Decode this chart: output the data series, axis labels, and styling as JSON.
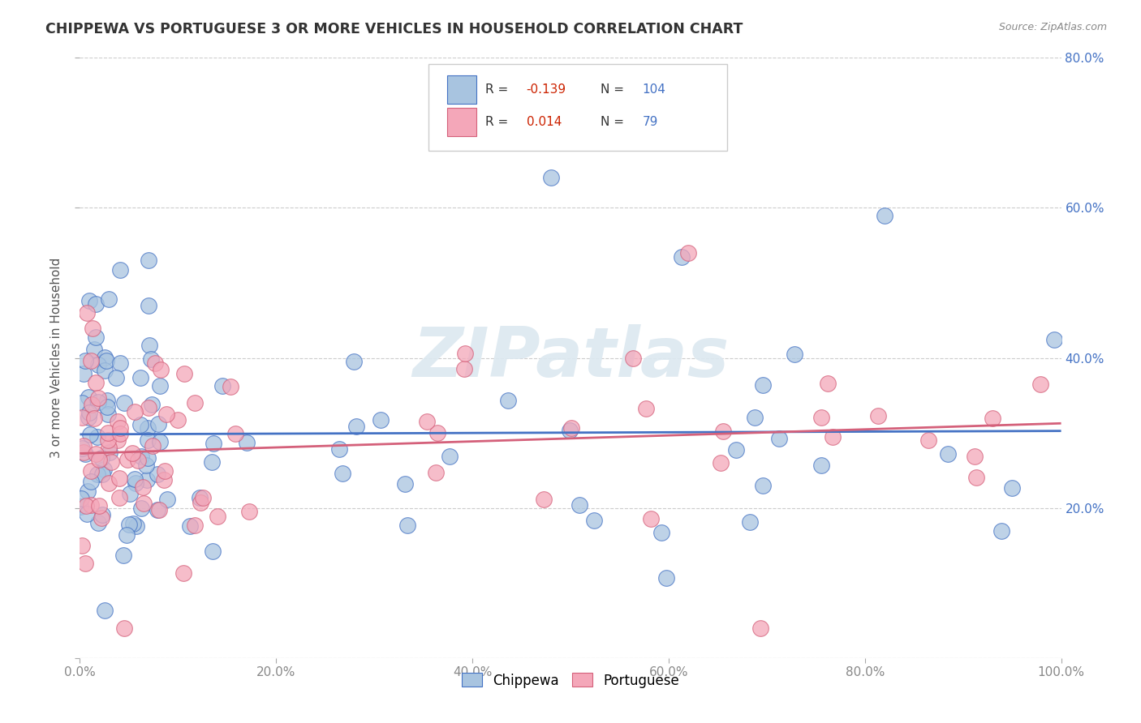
{
  "title": "CHIPPEWA VS PORTUGUESE 3 OR MORE VEHICLES IN HOUSEHOLD CORRELATION CHART",
  "source": "Source: ZipAtlas.com",
  "ylabel": "3 or more Vehicles in Household",
  "xlim": [
    0.0,
    1.0
  ],
  "ylim": [
    0.0,
    0.8
  ],
  "xticks": [
    0.0,
    0.2,
    0.4,
    0.6,
    0.8,
    1.0
  ],
  "xticklabels": [
    "0.0%",
    "20.0%",
    "40.0%",
    "60.0%",
    "80.0%",
    "100.0%"
  ],
  "right_yticks": [
    0.2,
    0.4,
    0.6,
    0.8
  ],
  "right_yticklabels": [
    "20.0%",
    "40.0%",
    "60.0%",
    "80.0%"
  ],
  "legend_R1": "-0.139",
  "legend_N1": "104",
  "legend_R2": "0.014",
  "legend_N2": "79",
  "chippewa_color": "#a8c4e0",
  "portuguese_color": "#f4a7b9",
  "line1_color": "#4472c4",
  "line2_color": "#d4607a",
  "watermark": "ZIPatlas",
  "watermark_color": "#dce8f0",
  "grid_color": "#cccccc",
  "title_color": "#333333",
  "source_color": "#888888",
  "tick_color": "#4472c4",
  "xtick_color": "#888888",
  "ylabel_color": "#555555"
}
